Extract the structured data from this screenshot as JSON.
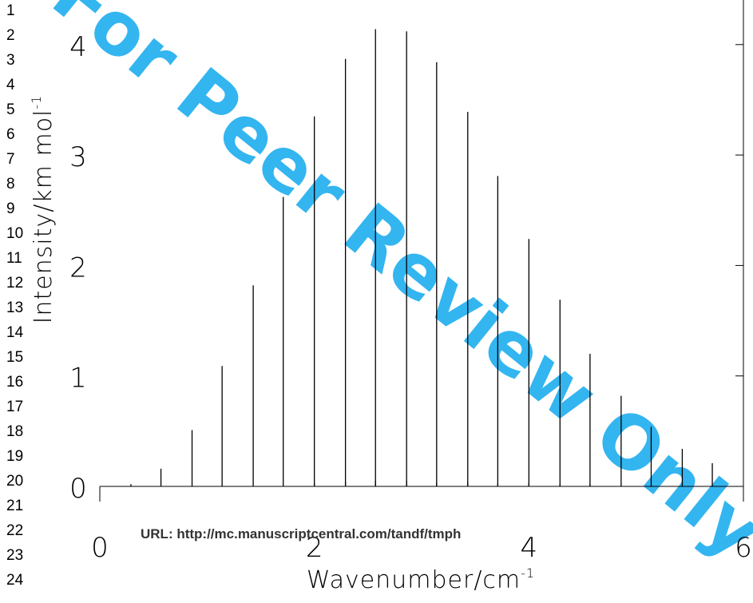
{
  "line_numbers": [
    "1",
    "2",
    "3",
    "4",
    "5",
    "6",
    "7",
    "8",
    "9",
    "10",
    "11",
    "12",
    "13",
    "14",
    "15",
    "16",
    "17",
    "18",
    "19",
    "20",
    "21",
    "22",
    "23",
    "24"
  ],
  "watermark": "For Peer Review Only",
  "footer_url": "URL: http://mc.manuscriptcentral.com/tandf/tmph",
  "colors": {
    "watermark": "#33b5f0",
    "axis": "#000000",
    "bars": "#000000"
  },
  "chart_data": {
    "type": "bar",
    "title": "",
    "xlabel": "Wavenumber/cm",
    "xlabel_sup": "-1",
    "ylabel": "Intensity/km mol",
    "ylabel_sup": "-1",
    "xlim": [
      0,
      6
    ],
    "ylim": [
      0,
      4.4
    ],
    "xticks": [
      0,
      2,
      4,
      6
    ],
    "yticks": [
      0,
      1,
      2,
      3,
      4
    ],
    "grid": false,
    "series": [
      {
        "x": [
          0.29,
          0.57,
          0.86,
          1.14,
          1.43,
          1.71,
          2.0,
          2.29,
          2.57,
          2.86,
          3.14,
          3.43,
          3.71,
          4.0,
          4.29,
          4.57,
          4.86,
          5.14,
          5.43,
          5.71
        ],
        "values": [
          0.02,
          0.16,
          0.51,
          1.09,
          1.82,
          2.62,
          3.35,
          3.87,
          4.14,
          4.12,
          3.84,
          3.39,
          2.81,
          2.24,
          1.69,
          1.2,
          0.82,
          0.54,
          0.34,
          0.21
        ]
      },
      {
        "x": [
          2.0,
          2.29,
          2.57,
          2.86,
          3.14,
          3.43,
          3.71,
          4.0,
          4.29,
          4.57,
          4.86
        ],
        "values": [
          0.03,
          0.04,
          0.05,
          0.05,
          0.04,
          0.04,
          0.03,
          0.03,
          0.02,
          0.02,
          0.01
        ]
      }
    ]
  }
}
